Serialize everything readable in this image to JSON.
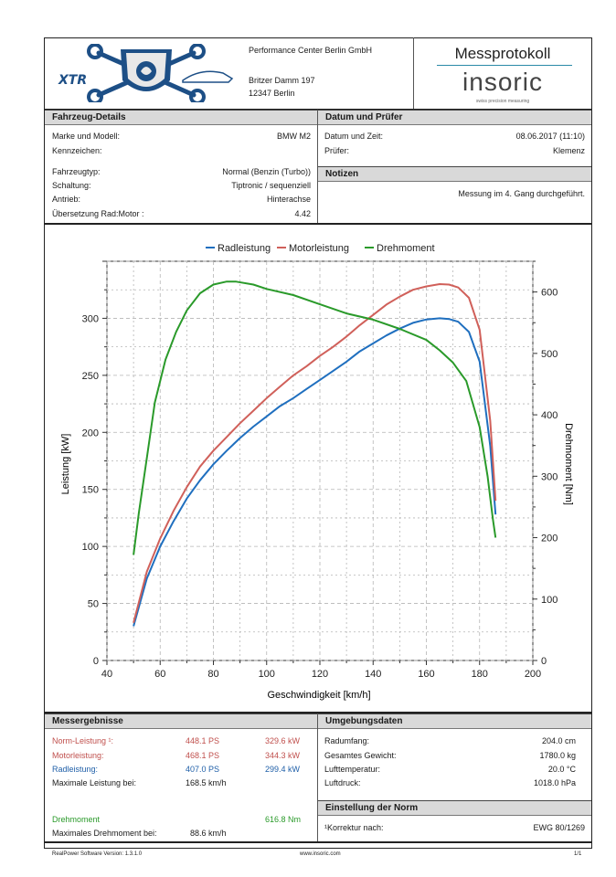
{
  "company": {
    "name": "Performance Center Berlin GmbH",
    "street": "Britzer Damm 197",
    "city": "12347 Berlin"
  },
  "header": {
    "title": "Messprotokoll",
    "brand": "insoric",
    "brand_tagline": "swiss precision measuring"
  },
  "vehicle": {
    "section_title": "Fahrzeug-Details",
    "rows": [
      {
        "label": "Marke und Modell:",
        "value": "BMW M2"
      },
      {
        "label": "Kennzeichen:",
        "value": ""
      },
      {
        "label": "Fahrzeugtyp:",
        "value": "Normal (Benzin (Turbo))"
      },
      {
        "label": "Schaltung:",
        "value": "Tiptronic / sequenziell"
      },
      {
        "label": "Antrieb:",
        "value": "Hinterachse"
      },
      {
        "label": "Übersetzung Rad:Motor :",
        "value": "4.42"
      }
    ]
  },
  "date_section": {
    "section_title": "Datum und Prüfer",
    "date_label": "Datum und Zeit:",
    "date_value": "08.06.2017 (11:10)",
    "tester_label": "Prüfer:",
    "tester_value": "Klemenz"
  },
  "notes": {
    "section_title": "Notizen",
    "text": "Messung im 4. Gang durchgeführt."
  },
  "chart_data": {
    "type": "line",
    "legend": [
      "Radleistung",
      "Motorleistung",
      "Drehmoment"
    ],
    "legend_position": "top-center",
    "xlabel": "Geschwindigkeit [km/h]",
    "ylabel": "Leistung [kW]",
    "y2label": "Drehmoment [Nm]",
    "xlim": [
      40,
      200
    ],
    "ylim": [
      0,
      350
    ],
    "y2lim": [
      0,
      650
    ],
    "x_ticks": [
      40,
      60,
      80,
      100,
      120,
      140,
      160,
      180,
      200
    ],
    "y_ticks": [
      0,
      50,
      100,
      150,
      200,
      250,
      300
    ],
    "y2_ticks": [
      0,
      100,
      200,
      300,
      400,
      500,
      600
    ],
    "grid": true,
    "colors": {
      "Radleistung": "#1f6fbf",
      "Motorleistung": "#d0605a",
      "Drehmoment": "#2a9a2a"
    },
    "series": [
      {
        "name": "Radleistung",
        "axis": "left",
        "x": [
          50,
          55,
          60,
          65,
          70,
          75,
          80,
          85,
          90,
          95,
          100,
          105,
          110,
          115,
          120,
          125,
          130,
          135,
          140,
          145,
          150,
          155,
          160,
          165,
          168.5,
          172,
          176,
          180,
          184,
          186
        ],
        "y": [
          30,
          72,
          100,
          122,
          142,
          158,
          172,
          184,
          195,
          205,
          214,
          223,
          230,
          238,
          246,
          254,
          262,
          271,
          278,
          285,
          291,
          296,
          299,
          300,
          299.4,
          297,
          288,
          262,
          188,
          128
        ]
      },
      {
        "name": "Motorleistung",
        "axis": "left",
        "x": [
          50,
          55,
          60,
          65,
          70,
          75,
          80,
          85,
          90,
          95,
          100,
          105,
          110,
          115,
          120,
          125,
          130,
          135,
          140,
          145,
          150,
          155,
          160,
          165,
          168.5,
          172,
          176,
          180,
          184,
          186
        ],
        "y": [
          33,
          78,
          107,
          131,
          152,
          170,
          184,
          196,
          208,
          219,
          230,
          240,
          250,
          258,
          267,
          275,
          284,
          294,
          303,
          312,
          319,
          325,
          328,
          330,
          329.6,
          327,
          318,
          290,
          210,
          140
        ]
      },
      {
        "name": "Drehmoment",
        "axis": "right",
        "x": [
          50,
          52,
          55,
          58,
          62,
          66,
          70,
          75,
          80,
          85,
          88.6,
          95,
          100,
          110,
          120,
          130,
          140,
          150,
          160,
          165,
          170,
          175,
          180,
          183,
          185,
          186
        ],
        "y": [
          172,
          240,
          330,
          420,
          490,
          535,
          570,
          598,
          612,
          617,
          616.8,
          612,
          605,
          595,
          580,
          565,
          555,
          540,
          522,
          505,
          485,
          455,
          380,
          300,
          230,
          200
        ]
      }
    ]
  },
  "results": {
    "section_title": "Messergebnisse",
    "norm": {
      "label": "Norm-Leistung ¹:",
      "ps": "448.1 PS",
      "kw": "329.6 kW"
    },
    "motor": {
      "label": "Motorleistung:",
      "ps": "468.1 PS",
      "kw": "344.3 kW"
    },
    "rad": {
      "label": "Radleistung:",
      "ps": "407.0 PS",
      "kw": "299.4 kW"
    },
    "max_power": {
      "label": "Maximale Leistung bei:",
      "value": "168.5 km/h"
    },
    "torque": {
      "label": "Drehmoment",
      "value": "616.8 Nm"
    },
    "max_torque": {
      "label": "Maximales Drehmoment bei:",
      "value": "88.6 km/h"
    }
  },
  "environment": {
    "section_title": "Umgebungsdaten",
    "rows": [
      {
        "label": "Radumfang:",
        "value": "204.0 cm"
      },
      {
        "label": "Gesamtes Gewicht:",
        "value": "1780.0 kg"
      },
      {
        "label": "Lufttemperatur:",
        "value": "20.0 °C"
      },
      {
        "label": "Luftdruck:",
        "value": "1018.0 hPa"
      }
    ]
  },
  "norm_setting": {
    "section_title": "Einstellung der Norm",
    "label": "¹Korrektur nach:",
    "value": "EWG 80/1269"
  },
  "footer": {
    "software": "RealPower Software Version: 1.3.1.0",
    "url": "www.insoric.com",
    "page": "1/1"
  }
}
